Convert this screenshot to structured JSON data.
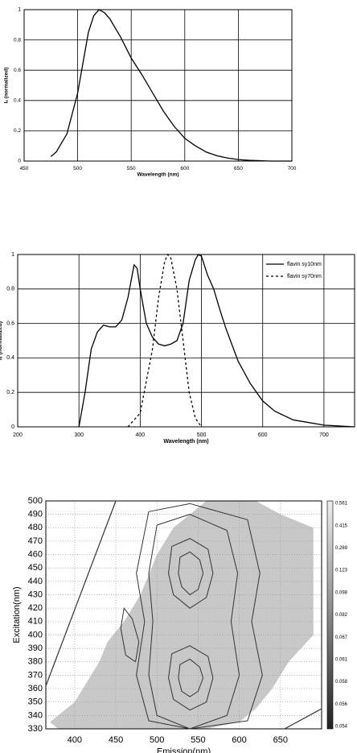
{
  "chart_data": [
    {
      "type": "line",
      "xlabel": "Wavelength (nm)",
      "ylabel": "Iₑ (normalized)",
      "xlim": [
        450,
        700
      ],
      "ylim": [
        0,
        1
      ],
      "xticks": [
        450,
        500,
        550,
        600,
        650,
        700
      ],
      "yticks": [
        0,
        0.2,
        0.4,
        0.6,
        0.8,
        1
      ],
      "grid": true,
      "grid_style": "solid",
      "series": [
        {
          "color": "#000000",
          "dash": "none",
          "x": [
            475,
            480,
            490,
            500,
            505,
            510,
            515,
            520,
            525,
            530,
            540,
            550,
            560,
            570,
            580,
            590,
            600,
            610,
            620,
            630,
            640,
            650,
            660,
            680,
            700
          ],
          "values": [
            0.03,
            0.06,
            0.18,
            0.45,
            0.65,
            0.85,
            0.96,
            1.0,
            0.98,
            0.94,
            0.82,
            0.68,
            0.57,
            0.45,
            0.33,
            0.23,
            0.15,
            0.1,
            0.06,
            0.035,
            0.02,
            0.01,
            0.005,
            0.0,
            0.0
          ]
        }
      ]
    },
    {
      "type": "line",
      "xlabel": "Wavelength (nm)",
      "ylabel": "Iₑ (normalized)",
      "xlim": [
        200,
        750
      ],
      "ylim": [
        0,
        1
      ],
      "xticks": [
        200,
        300,
        400,
        500,
        600,
        700
      ],
      "yticks": [
        0,
        0.2,
        0.4,
        0.6,
        0.8,
        1
      ],
      "grid": true,
      "grid_style": "solid",
      "legend": "top-right",
      "series": [
        {
          "name": "flavin sy10nm",
          "color": "#000000",
          "dash": "none",
          "x": [
            300,
            310,
            320,
            330,
            340,
            350,
            360,
            370,
            380,
            390,
            395,
            400,
            410,
            420,
            430,
            440,
            450,
            460,
            470,
            480,
            490,
            495,
            500,
            510,
            520,
            530,
            540,
            560,
            580,
            600,
            620,
            650,
            700,
            750
          ],
          "values": [
            0,
            0.2,
            0.45,
            0.55,
            0.59,
            0.58,
            0.58,
            0.62,
            0.75,
            0.94,
            0.92,
            0.8,
            0.6,
            0.52,
            0.48,
            0.47,
            0.48,
            0.5,
            0.6,
            0.85,
            0.97,
            1.0,
            0.99,
            0.88,
            0.8,
            0.68,
            0.57,
            0.38,
            0.25,
            0.15,
            0.09,
            0.04,
            0.01,
            0
          ]
        },
        {
          "name": "flavin sy70nm",
          "color": "#000000",
          "dash": "3,3",
          "x": [
            380,
            400,
            420,
            430,
            440,
            445,
            450,
            460,
            470,
            480,
            490,
            500
          ],
          "values": [
            0,
            0.08,
            0.45,
            0.75,
            0.96,
            1.0,
            0.98,
            0.8,
            0.5,
            0.2,
            0.05,
            0
          ]
        }
      ]
    },
    {
      "type": "contour",
      "xlabel": "Emission(nm)",
      "ylabel": "Excitation(nm)",
      "xlim": [
        365,
        700
      ],
      "ylim": [
        330,
        500
      ],
      "xticks": [
        400,
        450,
        500,
        550,
        600,
        650
      ],
      "yticks": [
        330,
        340,
        350,
        360,
        370,
        380,
        390,
        400,
        410,
        420,
        430,
        440,
        450,
        460,
        470,
        480,
        490,
        500
      ],
      "grid": true,
      "grid_style": "dotted",
      "colorbar_labels": [
        0.561,
        0.415,
        0.269,
        0.123,
        0.098,
        0.082,
        0.067,
        0.061,
        0.058,
        0.056,
        0.054
      ],
      "shaded_region": {
        "x": [
          370,
          400,
          430,
          440,
          460,
          480,
          500,
          520,
          560,
          620,
          650,
          690,
          690,
          660,
          640,
          620,
          600,
          560,
          520,
          470,
          420,
          380,
          370
        ],
        "y": [
          335,
          350,
          380,
          395,
          410,
          430,
          460,
          480,
          500,
          500,
          490,
          480,
          400,
          380,
          360,
          345,
          335,
          330,
          330,
          330,
          330,
          330,
          335
        ]
      },
      "contours": [
        {
          "x": [
            528,
            540,
            552,
            556,
            550,
            540,
            530,
            526
          ],
          "y": [
            458,
            462,
            456,
            446,
            434,
            430,
            436,
            446
          ]
        },
        {
          "x": [
            518,
            540,
            562,
            568,
            560,
            540,
            520,
            514
          ],
          "y": [
            466,
            472,
            464,
            446,
            428,
            420,
            430,
            446
          ]
        },
        {
          "x": [
            528,
            540,
            552,
            556,
            550,
            540,
            530,
            526
          ],
          "y": [
            378,
            382,
            376,
            368,
            358,
            354,
            358,
            368
          ]
        },
        {
          "x": [
            518,
            540,
            562,
            568,
            560,
            540,
            520,
            514
          ],
          "y": [
            386,
            392,
            384,
            368,
            350,
            344,
            352,
            368
          ]
        },
        {
          "x": [
            500,
            540,
            585,
            598,
            590,
            600,
            585,
            540,
            500,
            490,
            495,
            490
          ],
          "y": [
            482,
            490,
            478,
            446,
            410,
            370,
            340,
            330,
            340,
            370,
            410,
            446
          ]
        },
        {
          "x": [
            490,
            540,
            610,
            625,
            615,
            628,
            610,
            540,
            490,
            475,
            485,
            475
          ],
          "y": [
            492,
            498,
            486,
            446,
            410,
            370,
            336,
            330,
            336,
            370,
            410,
            446
          ]
        },
        {
          "x": [
            460,
            470,
            478,
            474,
            462,
            456
          ],
          "y": [
            420,
            412,
            395,
            380,
            385,
            405
          ]
        }
      ],
      "diagonals": [
        {
          "x": [
            365,
            450
          ],
          "y": [
            362,
            500
          ]
        },
        {
          "x": [
            655,
            700
          ],
          "y": [
            330,
            345
          ]
        }
      ]
    }
  ]
}
